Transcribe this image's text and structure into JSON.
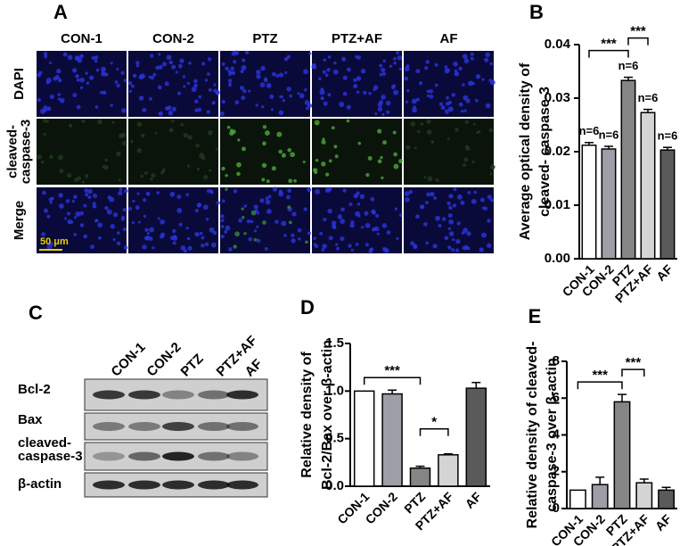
{
  "panel_letters": [
    "A",
    "B",
    "C",
    "D",
    "E"
  ],
  "figure_a": {
    "columns": [
      "CON-1",
      "CON-2",
      "PTZ",
      "PTZ+AF",
      "AF"
    ],
    "rows": [
      [
        "DAPI"
      ],
      [
        "cleaved-",
        "caspase-3"
      ],
      [
        "Merge"
      ]
    ],
    "scale_bar": "50 μm"
  },
  "figure_c": {
    "lanes": [
      "CON-1",
      "CON-2",
      "PTZ",
      "PTZ+AF",
      "AF"
    ],
    "rows": [
      [
        "Bcl-2"
      ],
      [
        "Bax"
      ],
      [
        "cleaved-",
        "caspase-3"
      ],
      [
        "β-actin"
      ]
    ]
  },
  "chart_data": [
    {
      "type": "bar",
      "ylabel": [
        "Average optical density of",
        "cleaved- caspase-3"
      ],
      "categories": [
        "CON-1",
        "CON-2",
        "PTZ",
        "PTZ+AF",
        "AF"
      ],
      "colors": [
        "#ffffff",
        "#9e9ea8",
        "#858585",
        "#d4d4d4",
        "#5a5a5a"
      ],
      "values": [
        0.0212,
        0.0205,
        0.0333,
        0.0273,
        0.0203
      ],
      "errors": [
        0.0005,
        0.0005,
        0.0006,
        0.0006,
        0.0005
      ],
      "bar_annotations": [
        "n=6",
        "n=6",
        "n=6",
        "n=6",
        "n=6"
      ],
      "ylim": [
        0,
        0.04
      ],
      "yticks": [
        {
          "value": 0,
          "label": "0.00"
        },
        0.01,
        0.02,
        0.03,
        0.04
      ],
      "significance": [
        {
          "between": [
            "CON-1",
            "PTZ"
          ],
          "label": "***"
        },
        {
          "between": [
            "PTZ",
            "PTZ+AF"
          ],
          "label": "***"
        }
      ]
    },
    {
      "type": "bar",
      "ylabel": [
        "Relative density of",
        "Bcl-2/Bax over β-actin"
      ],
      "categories": [
        "CON-1",
        "CON-2",
        "PTZ",
        "PTZ+AF",
        "AF"
      ],
      "colors": [
        "#ffffff",
        "#9e9ea8",
        "#858585",
        "#d4d4d4",
        "#5a5a5a"
      ],
      "values": [
        1.0,
        0.97,
        0.19,
        0.33,
        1.03
      ],
      "errors": [
        0,
        0.04,
        0.02,
        0.01,
        0.06
      ],
      "ylim": [
        0,
        1.5
      ],
      "yticks": [
        {
          "value": 0,
          "label": "0.0"
        },
        0.5,
        {
          "value": 1,
          "label": "1.0"
        },
        1.5
      ],
      "significance": [
        {
          "between": [
            "CON-1",
            "PTZ"
          ],
          "label": "***"
        },
        {
          "between": [
            "PTZ",
            "PTZ+AF"
          ],
          "label": "*"
        }
      ]
    },
    {
      "type": "bar",
      "ylabel": [
        "Relative density of cleaved-",
        "caspase-3 over β-actin"
      ],
      "categories": [
        "CON-1",
        "CON-2",
        "PTZ",
        "PTZ+AF",
        "AF"
      ],
      "colors": [
        "#ffffff",
        "#9e9ea8",
        "#858585",
        "#d4d4d4",
        "#5a5a5a"
      ],
      "values": [
        1.0,
        1.3,
        5.8,
        1.4,
        1.0
      ],
      "errors": [
        0,
        0.4,
        0.4,
        0.2,
        0.15
      ],
      "ylim": [
        0,
        8
      ],
      "yticks": [
        0,
        2,
        4,
        6,
        8
      ],
      "significance": [
        {
          "between": [
            "CON-1",
            "PTZ"
          ],
          "label": "***"
        },
        {
          "between": [
            "PTZ",
            "PTZ+AF"
          ],
          "label": "***"
        }
      ]
    }
  ]
}
